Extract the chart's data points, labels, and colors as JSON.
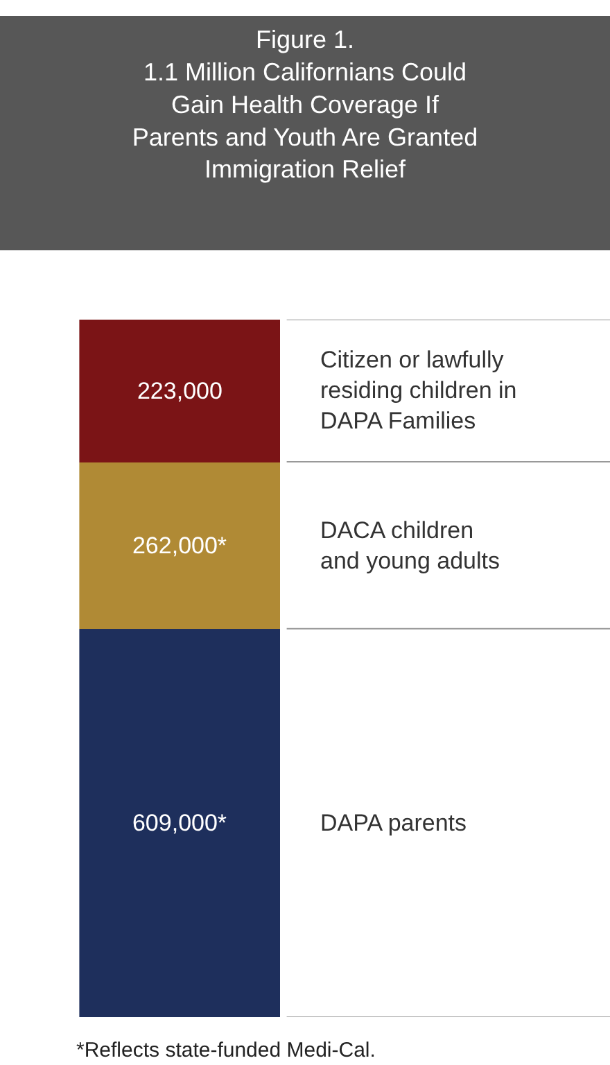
{
  "chart_data": {
    "type": "bar",
    "stacked": true,
    "legend": false,
    "title": "Figure 1.\n1.1 Million Californians Could\nGain Health Coverage If\nParents and Youth Are Granted\nImmigration Relief",
    "categories": [
      null
    ],
    "series": [
      {
        "name": "DAPA parents",
        "color": "#1e2f5c",
        "values": [
          609000
        ],
        "value_labels": [
          "609,000*"
        ]
      },
      {
        "name": "DACA children\nand young adults",
        "color": "#b08a35",
        "values": [
          262000
        ],
        "value_labels": [
          "262,000*"
        ]
      },
      {
        "name": "Citizen or lawfully\nresiding children in\nDAPA Families",
        "color": "#7b1416",
        "values": [
          223000
        ],
        "value_labels": [
          "223,000"
        ]
      }
    ],
    "annotations": [
      "*Reflects state-funded Medi-Cal."
    ]
  }
}
